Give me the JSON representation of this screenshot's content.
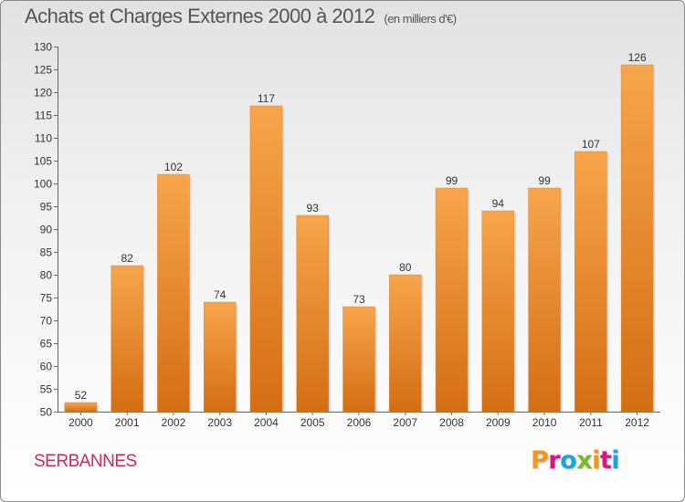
{
  "header": {
    "title": "Achats et Charges Externes 2000 à 2012",
    "unit_note": "(en milliers d'€)"
  },
  "footer": {
    "commune": "SERBANNES",
    "brand": "Proxiti",
    "brand_colors": [
      "#f7941d",
      "#e0127e",
      "#1aa6e0",
      "#7ab82e",
      "#f7941d",
      "#e0127e",
      "#1aa6e0"
    ]
  },
  "colors": {
    "bar_light": "#f7a54c",
    "bar_dark": "#d46e14",
    "commune_text": "#cc2a5d"
  },
  "chart_data": {
    "type": "bar",
    "title": "Achats et Charges Externes 2000 à 2012",
    "subtitle": "(en milliers d'€)",
    "categories": [
      "2000",
      "2001",
      "2002",
      "2003",
      "2004",
      "2005",
      "2006",
      "2007",
      "2008",
      "2009",
      "2010",
      "2011",
      "2012"
    ],
    "values": [
      52,
      82,
      102,
      74,
      117,
      93,
      73,
      80,
      99,
      94,
      99,
      107,
      126
    ],
    "ylim": [
      50,
      130
    ],
    "yticks": [
      50,
      55,
      60,
      65,
      70,
      75,
      80,
      85,
      90,
      95,
      100,
      105,
      110,
      115,
      120,
      125,
      130
    ],
    "grid": false,
    "data_labels": true
  }
}
